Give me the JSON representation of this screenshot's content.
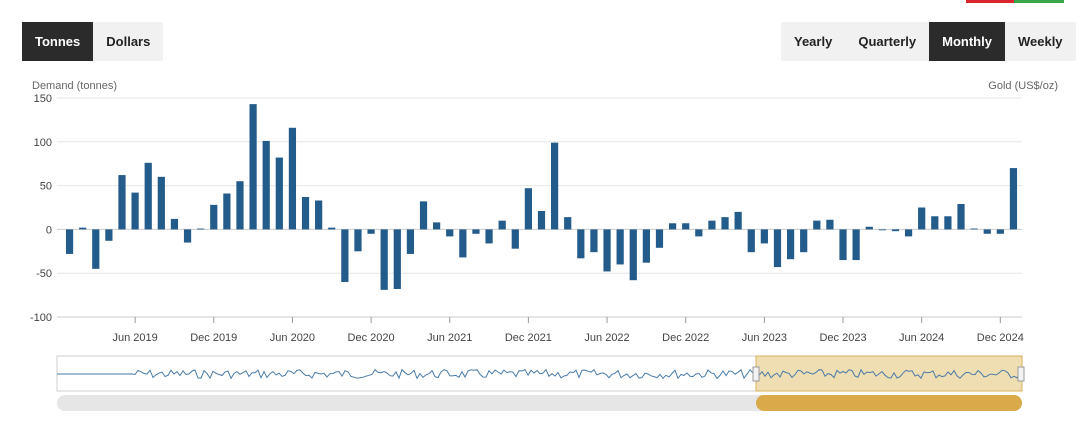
{
  "units_toggle": {
    "options": [
      "Tonnes",
      "Dollars"
    ],
    "active": 0
  },
  "period_toggle": {
    "options": [
      "Yearly",
      "Quarterly",
      "Monthly",
      "Weekly"
    ],
    "active": 2
  },
  "colors": {
    "bar": "#235b8a",
    "navigator_line": "#4a7ba7",
    "navigator_fill": "#f0deb3",
    "navigator_border": "#d7b05a",
    "scrollbar_thumb": "#d9a94a",
    "scrollbar_track": "#e6e6e6"
  },
  "chart_data": {
    "type": "bar",
    "title": "",
    "ylabel_left": "Demand (tonnes)",
    "ylabel_right": "Gold (US$/oz)",
    "ylim": [
      -100,
      150
    ],
    "yticks": [
      -100,
      -50,
      0,
      50,
      100,
      150
    ],
    "xtick_labels": [
      "Jun 2019",
      "Dec 2019",
      "Jun 2020",
      "Dec 2020",
      "Jun 2021",
      "Dec 2021",
      "Jun 2022",
      "Dec 2022",
      "Jun 2023",
      "Dec 2023",
      "Jun 2024",
      "Dec 2024"
    ],
    "x_first_month": "2019-01",
    "grid": true,
    "series": [
      {
        "values": [
          -28,
          2,
          -45,
          -13,
          62,
          42,
          76,
          60,
          12,
          -15,
          1,
          28,
          41,
          55,
          143,
          101,
          82,
          116,
          37,
          33,
          2,
          -60,
          -25,
          -5,
          -69,
          -68,
          -28,
          32,
          8,
          -8,
          -32,
          -5,
          -16,
          10,
          -22,
          47,
          21,
          99,
          14,
          -33,
          -26,
          -48,
          -40,
          -58,
          -38,
          -21,
          7,
          7,
          -8,
          10,
          14,
          20,
          -26,
          -16,
          -43,
          -34,
          -26,
          10,
          11,
          -35,
          -35,
          3,
          -1,
          -2,
          -8,
          25,
          15,
          15,
          29,
          1,
          -5,
          -5,
          70
        ]
      }
    ]
  }
}
